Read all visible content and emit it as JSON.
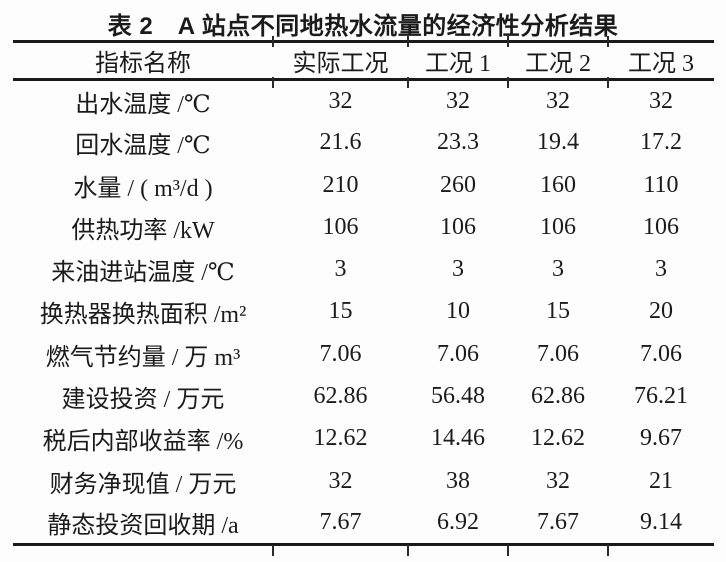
{
  "title": "表 2　A 站点不同地热水流量的经济性分析结果",
  "table": {
    "columns": [
      "指标名称",
      "实际工况",
      "工况 1",
      "工况 2",
      "工况 3"
    ],
    "rows": [
      {
        "label": "出水温度 /℃",
        "values": [
          "32",
          "32",
          "32",
          "32"
        ]
      },
      {
        "label": "回水温度 /℃",
        "values": [
          "21.6",
          "23.3",
          "19.4",
          "17.2"
        ]
      },
      {
        "label": "水量 / ( m³/d )",
        "values": [
          "210",
          "260",
          "160",
          "110"
        ]
      },
      {
        "label": "供热功率 /kW",
        "values": [
          "106",
          "106",
          "106",
          "106"
        ]
      },
      {
        "label": "来油进站温度 /℃",
        "values": [
          "3",
          "3",
          "3",
          "3"
        ]
      },
      {
        "label": "换热器换热面积 /m²",
        "values": [
          "15",
          "10",
          "15",
          "20"
        ]
      },
      {
        "label": "燃气节约量 / 万 m³",
        "values": [
          "7.06",
          "7.06",
          "7.06",
          "7.06"
        ]
      },
      {
        "label": "建设投资 / 万元",
        "values": [
          "62.86",
          "56.48",
          "62.86",
          "76.21"
        ]
      },
      {
        "label": "税后内部收益率 /%",
        "values": [
          "12.62",
          "14.46",
          "12.62",
          "9.67"
        ]
      },
      {
        "label": "财务净现值 / 万元",
        "values": [
          "32",
          "38",
          "32",
          "21"
        ]
      },
      {
        "label": "静态投资回收期 /a",
        "values": [
          "7.67",
          "6.92",
          "7.67",
          "9.14"
        ]
      }
    ]
  },
  "colors": {
    "text": "#1b1b1b",
    "rule": "#1a1a1a"
  }
}
